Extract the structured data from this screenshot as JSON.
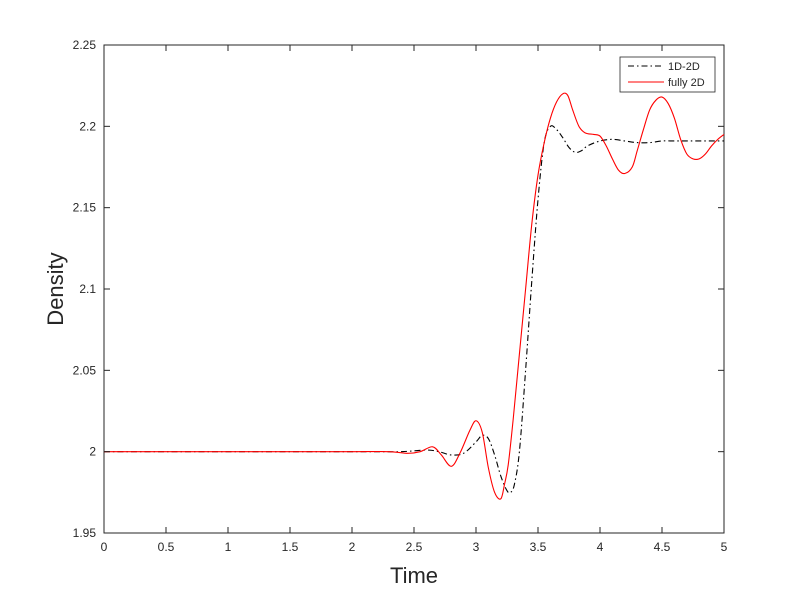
{
  "chart_data": {
    "type": "line",
    "title": "",
    "xlabel": "Time",
    "ylabel": "Density",
    "xlim": [
      0,
      5
    ],
    "ylim": [
      1.95,
      2.25
    ],
    "xticks": [
      0,
      0.5,
      1,
      1.5,
      2,
      2.5,
      3,
      3.5,
      4,
      4.5,
      5
    ],
    "yticks": [
      1.95,
      2,
      2.05,
      2.1,
      2.15,
      2.2,
      2.25
    ],
    "xtick_labels": [
      "0",
      "0.5",
      "1",
      "1.5",
      "2",
      "2.5",
      "3",
      "3.5",
      "4",
      "4.5",
      "5"
    ],
    "ytick_labels": [
      "1.95",
      "2",
      "2.05",
      "2.1",
      "2.15",
      "2.2",
      "2.25"
    ],
    "grid": false,
    "legend": {
      "placement": "top-right"
    },
    "series": [
      {
        "name": "1D-2D",
        "color": "#000000",
        "style": "dash-dot",
        "x": [
          0,
          0.5,
          1,
          1.5,
          2,
          2.2,
          2.4,
          2.6,
          2.7,
          2.8,
          2.9,
          3.0,
          3.05,
          3.1,
          3.15,
          3.2,
          3.25,
          3.28,
          3.31,
          3.35,
          3.4,
          3.45,
          3.5,
          3.55,
          3.6,
          3.65,
          3.7,
          3.75,
          3.8,
          3.85,
          3.9,
          4.0,
          4.1,
          4.2,
          4.3,
          4.4,
          4.5,
          4.6,
          4.7,
          4.8,
          4.9,
          5.0
        ],
        "y": [
          2.0,
          2.0,
          2.0,
          2.0,
          2.0,
          2.0,
          2.0,
          2.001,
          2.0,
          1.998,
          1.999,
          2.006,
          2.01,
          2.008,
          1.998,
          1.985,
          1.976,
          1.975,
          1.98,
          2.0,
          2.05,
          2.105,
          2.155,
          2.19,
          2.2,
          2.198,
          2.193,
          2.187,
          2.184,
          2.185,
          2.188,
          2.191,
          2.192,
          2.191,
          2.19,
          2.19,
          2.191,
          2.191,
          2.191,
          2.191,
          2.191,
          2.191
        ]
      },
      {
        "name": "fully 2D",
        "color": "#ff0000",
        "style": "solid",
        "x": [
          0,
          0.5,
          1,
          1.5,
          2,
          2.3,
          2.45,
          2.55,
          2.65,
          2.72,
          2.8,
          2.87,
          2.95,
          3.0,
          3.05,
          3.1,
          3.15,
          3.2,
          3.23,
          3.26,
          3.3,
          3.35,
          3.4,
          3.45,
          3.5,
          3.55,
          3.6,
          3.65,
          3.7,
          3.74,
          3.78,
          3.83,
          3.88,
          3.95,
          4.0,
          4.05,
          4.1,
          4.15,
          4.2,
          4.26,
          4.3,
          4.35,
          4.4,
          4.45,
          4.5,
          4.55,
          4.6,
          4.65,
          4.7,
          4.75,
          4.8,
          4.85,
          4.9,
          4.95,
          5.0
        ],
        "y": [
          2.0,
          2.0,
          2.0,
          2.0,
          2.0,
          2.0,
          1.999,
          2.0,
          2.003,
          1.998,
          1.991,
          1.999,
          2.013,
          2.019,
          2.012,
          1.99,
          1.975,
          1.971,
          1.98,
          1.992,
          2.02,
          2.06,
          2.1,
          2.14,
          2.17,
          2.19,
          2.205,
          2.215,
          2.22,
          2.219,
          2.21,
          2.2,
          2.196,
          2.195,
          2.194,
          2.188,
          2.18,
          2.173,
          2.171,
          2.175,
          2.185,
          2.198,
          2.21,
          2.216,
          2.218,
          2.214,
          2.205,
          2.192,
          2.183,
          2.18,
          2.18,
          2.183,
          2.188,
          2.192,
          2.195
        ]
      }
    ]
  }
}
